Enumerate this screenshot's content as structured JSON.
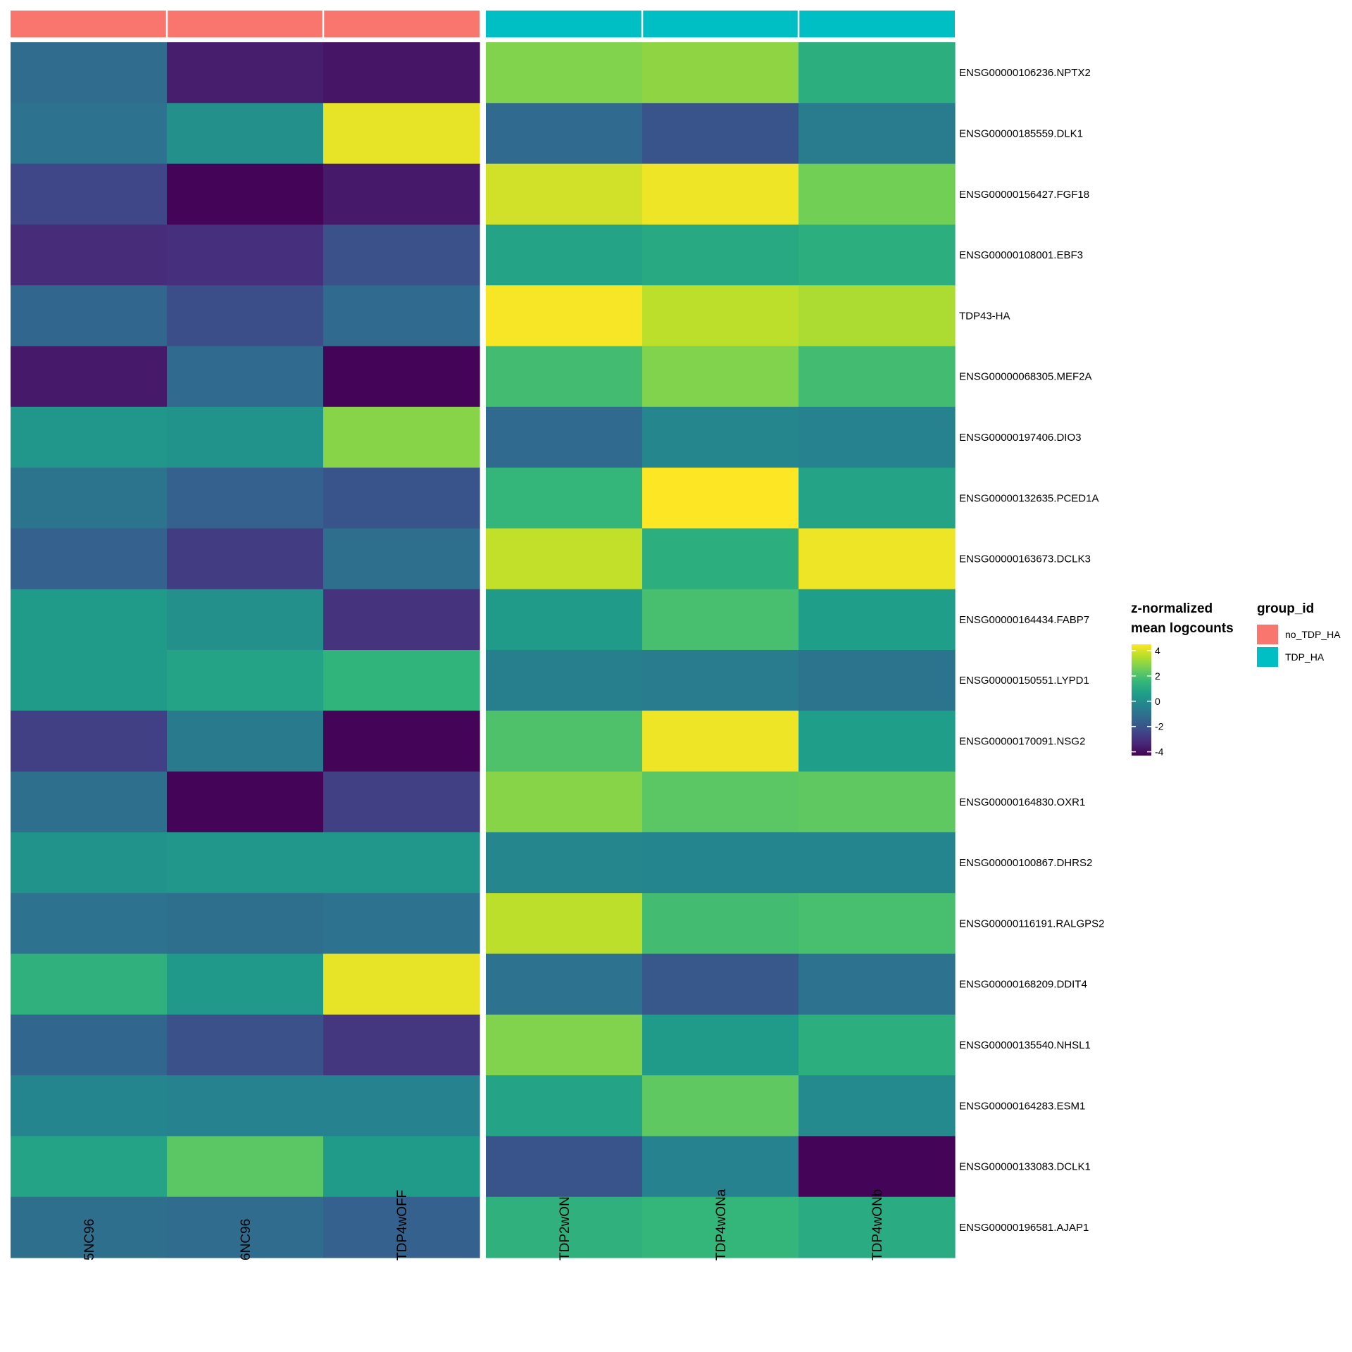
{
  "chart_data": {
    "type": "heatmap",
    "columns": [
      "5NC96",
      "6NC96",
      "TDP4wOFF",
      "TDP2wON",
      "TDP4wONa",
      "TDP4wONb"
    ],
    "column_groups": [
      "no_TDP_HA",
      "no_TDP_HA",
      "no_TDP_HA",
      "TDP_HA",
      "TDP_HA",
      "TDP_HA"
    ],
    "rows": [
      "ENSG00000106236.NPTX2",
      "ENSG00000185559.DLK1",
      "ENSG00000156427.FGF18",
      "ENSG00000108001.EBF3",
      "TDP43-HA",
      "ENSG00000068305.MEF2A",
      "ENSG00000197406.DIO3",
      "ENSG00000132635.PCED1A",
      "ENSG00000163673.DCLK3",
      "ENSG00000164434.FABP7",
      "ENSG00000150551.LYPD1",
      "ENSG00000170091.NSG2",
      "ENSG00000164830.OXR1",
      "ENSG00000100867.DHRS2",
      "ENSG00000116191.RALGPS2",
      "ENSG00000168209.DDIT4",
      "ENSG00000135540.NHSL1",
      "ENSG00000164283.ESM1",
      "ENSG00000133083.DCLK1",
      "ENSG00000196581.AJAP1"
    ],
    "values": [
      [
        -1.2,
        -3.6,
        -3.8,
        2.8,
        3.0,
        1.2
      ],
      [
        -1.0,
        0.1,
        4.2,
        -1.3,
        -2.0,
        -0.6
      ],
      [
        -2.4,
        -4.2,
        -3.7,
        3.9,
        4.3,
        2.6
      ],
      [
        -3.2,
        -3.1,
        -2.1,
        0.8,
        1.0,
        1.2
      ],
      [
        -1.4,
        -2.2,
        -1.3,
        4.4,
        3.6,
        3.4
      ],
      [
        -3.7,
        -1.3,
        -4.2,
        1.8,
        2.8,
        1.8
      ],
      [
        0.3,
        0.2,
        2.9,
        -1.3,
        -0.2,
        -0.4
      ],
      [
        -0.9,
        -1.6,
        -2.0,
        1.5,
        4.5,
        0.8
      ],
      [
        -1.6,
        -2.7,
        -1.1,
        3.7,
        1.2,
        4.3
      ],
      [
        0.5,
        0.1,
        -3.0,
        0.5,
        1.9,
        0.6
      ],
      [
        0.5,
        0.8,
        1.4,
        -0.5,
        -0.6,
        -0.9
      ],
      [
        -2.6,
        -0.7,
        -4.2,
        2.0,
        4.3,
        0.6
      ],
      [
        -1.1,
        -4.2,
        -2.6,
        2.9,
        2.2,
        2.3
      ],
      [
        0.2,
        0.3,
        0.3,
        -0.2,
        -0.3,
        -0.3
      ],
      [
        -1.0,
        -1.1,
        -1.0,
        3.6,
        1.8,
        1.9
      ],
      [
        1.3,
        0.4,
        4.2,
        -1.0,
        -1.9,
        -1.0
      ],
      [
        -1.4,
        -2.1,
        -2.9,
        2.8,
        0.5,
        1.2
      ],
      [
        -0.3,
        -0.4,
        -0.4,
        0.8,
        2.3,
        -0.1
      ],
      [
        0.8,
        2.2,
        0.5,
        -2.0,
        -0.4,
        -4.2
      ],
      [
        -1.1,
        -1.2,
        -1.6,
        1.3,
        1.5,
        1.1
      ]
    ],
    "colorscale": "viridis",
    "legend": {
      "title_line1": "z-normalized",
      "title_line2": "mean logcounts",
      "ticks": [
        4,
        2,
        0,
        -2,
        -4
      ],
      "range": [
        -4.3,
        4.5
      ]
    },
    "group_legend": {
      "title": "group_id",
      "items": [
        {
          "label": "no_TDP_HA",
          "color": "#F8766D"
        },
        {
          "label": "TDP_HA",
          "color": "#00BFC4"
        }
      ]
    }
  }
}
